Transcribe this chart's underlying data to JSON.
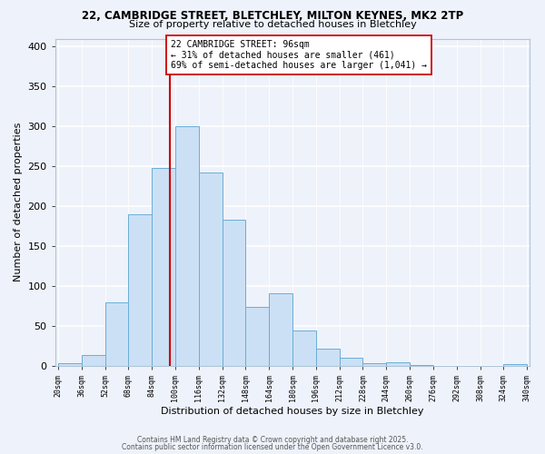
{
  "title1": "22, CAMBRIDGE STREET, BLETCHLEY, MILTON KEYNES, MK2 2TP",
  "title2": "Size of property relative to detached houses in Bletchley",
  "xlabel": "Distribution of detached houses by size in Bletchley",
  "ylabel": "Number of detached properties",
  "bin_starts": [
    20,
    36,
    52,
    68,
    84,
    100,
    116,
    132,
    148,
    164,
    180,
    196,
    212,
    228,
    244,
    260,
    276,
    292,
    308,
    324
  ],
  "bar_heights": [
    3,
    14,
    80,
    190,
    248,
    300,
    242,
    183,
    74,
    91,
    44,
    22,
    10,
    3,
    5,
    1,
    0,
    0,
    0,
    2
  ],
  "bin_width": 16,
  "xlabels": [
    "20sqm",
    "36sqm",
    "52sqm",
    "68sqm",
    "84sqm",
    "100sqm",
    "116sqm",
    "132sqm",
    "148sqm",
    "164sqm",
    "180sqm",
    "196sqm",
    "212sqm",
    "228sqm",
    "244sqm",
    "260sqm",
    "276sqm",
    "292sqm",
    "308sqm",
    "324sqm",
    "340sqm"
  ],
  "bar_color": "#cce0f5",
  "bar_edge_color": "#6aaed6",
  "ylim": [
    0,
    410
  ],
  "yticks": [
    0,
    50,
    100,
    150,
    200,
    250,
    300,
    350,
    400
  ],
  "vline_x": 96,
  "vline_color": "#cc0000",
  "annotation_title": "22 CAMBRIDGE STREET: 96sqm",
  "annotation_line1": "← 31% of detached houses are smaller (461)",
  "annotation_line2": "69% of semi-detached houses are larger (1,041) →",
  "annotation_box_facecolor": "#ffffff",
  "annotation_box_edgecolor": "#cc0000",
  "bg_color": "#eef2fa",
  "grid_color": "#ffffff",
  "spine_color": "#aec6d8",
  "footer1": "Contains HM Land Registry data © Crown copyright and database right 2025.",
  "footer2": "Contains public sector information licensed under the Open Government Licence v3.0."
}
